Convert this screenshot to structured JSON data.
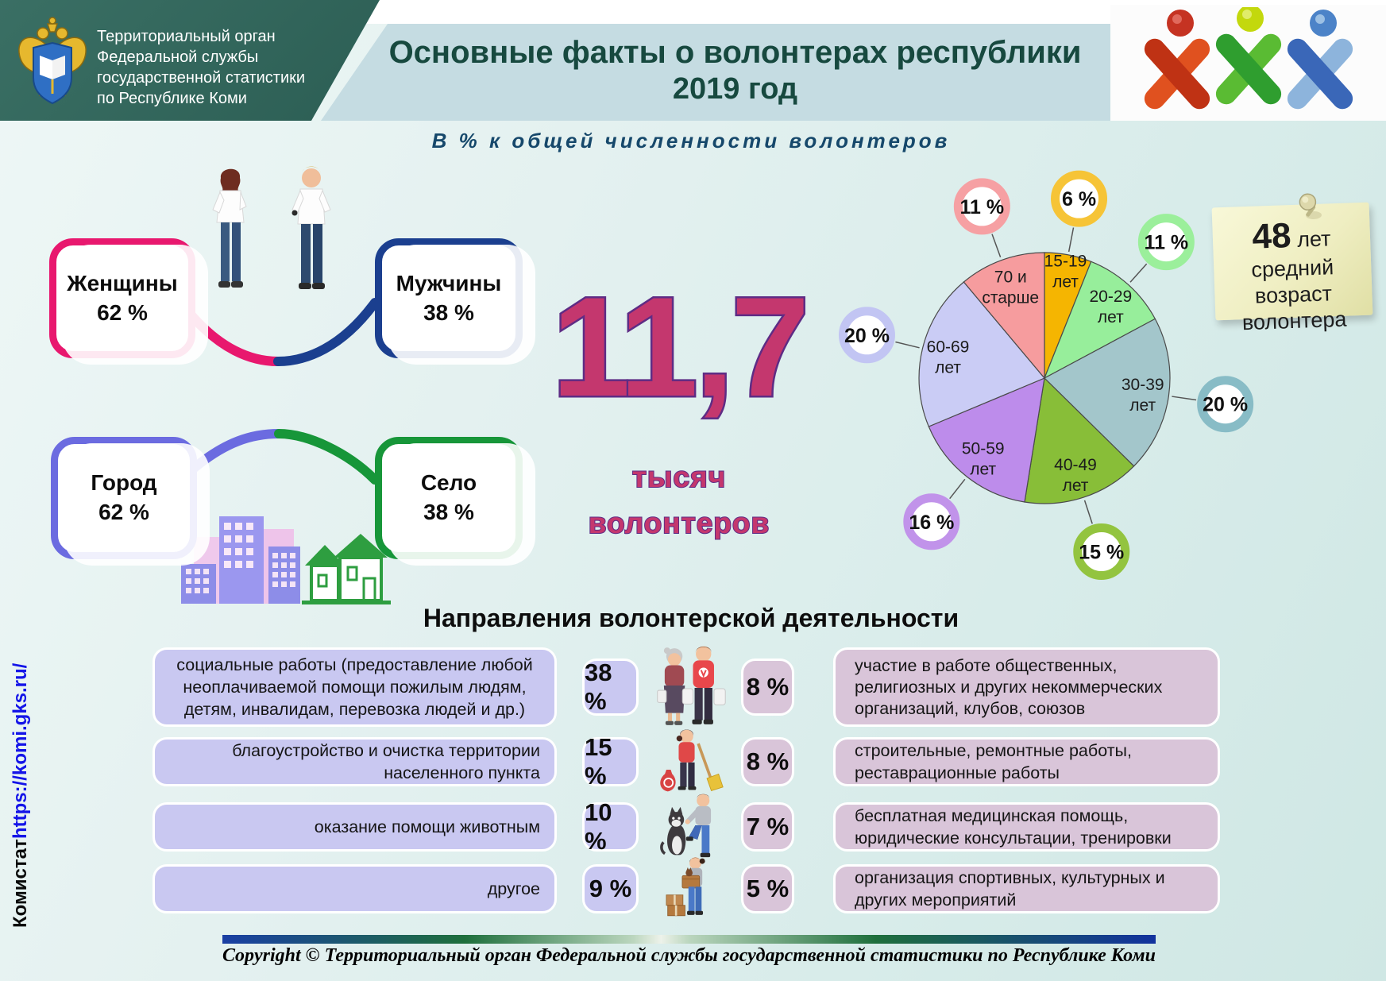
{
  "header": {
    "org_lines": [
      "Территориальный орган",
      "Федеральной службы",
      "государственной статистики",
      "по Республике Коми"
    ],
    "title_line1": "Основные факты о волонтерах республики",
    "title_line2": "2019 год"
  },
  "subtitle": "В % к общей численности волонтеров",
  "stats": {
    "women": {
      "label": "Женщины",
      "value": "62 %"
    },
    "men": {
      "label": "Мужчины",
      "value": "38 %"
    },
    "city": {
      "label": "Город",
      "value": "62 %"
    },
    "village": {
      "label": "Село",
      "value": "38 %"
    },
    "total": {
      "number": "11,7",
      "unit_line1": "тысяч",
      "unit_line2": "волонтеров"
    }
  },
  "average_age_note": {
    "number": "48",
    "suffix": " лет",
    "line2": "средний возраст",
    "line3": "волонтера"
  },
  "chart_data": {
    "type": "pie",
    "title": "В % к общей численности волонтеров",
    "unit": "percent",
    "legend_position": "badges-around",
    "slices": [
      {
        "label": "15-19 лет",
        "value": 6,
        "badge": "6 %",
        "color": "#F5B501",
        "ring": "#F6C437"
      },
      {
        "label": "20-29 лет",
        "value": 11,
        "badge": "11 %",
        "color": "#97EE9B",
        "ring": "#9BEF9B"
      },
      {
        "label": "30-39 лет",
        "value": 20,
        "badge": "20 %",
        "color": "#A3C6CB",
        "ring": "#88BCC6"
      },
      {
        "label": "40-49 лет",
        "value": 15,
        "badge": "15 %",
        "color": "#88BE38",
        "ring": "#93C43F"
      },
      {
        "label": "50-59 лет",
        "value": 16,
        "badge": "16 %",
        "color": "#BD8CEB",
        "ring": "#C193EA"
      },
      {
        "label": "60-69 лет",
        "value": 20,
        "badge": "20 %",
        "color": "#CACCF5",
        "ring": "#C2C5F3"
      },
      {
        "label": "70 и старше",
        "value": 11,
        "badge": "11 %",
        "color": "#F69C9E",
        "ring": "#F6A0A3"
      }
    ]
  },
  "activities": {
    "heading": "Направления волонтерской деятельности",
    "left": [
      {
        "text": "социальные работы (предоставление любой неоплачиваемой помощи пожилым людям, детям, инвалидам, перевозка людей и др.)",
        "value": "38 %"
      },
      {
        "text": "благоустройство и очистка территории населенного пункта",
        "value": "15 %"
      },
      {
        "text": "оказание помощи животным",
        "value": "10 %"
      },
      {
        "text": "другое",
        "value": "9 %"
      }
    ],
    "right": [
      {
        "value": "8 %",
        "text": "участие в работе общественных, религиозных и других некоммерческих организаций, клубов, союзов"
      },
      {
        "value": "8 %",
        "text": "строительные, ремонтные работы, реставрационные работы"
      },
      {
        "value": "7 %",
        "text": "бесплатная медицинская помощь, юридические консультации, тренировки"
      },
      {
        "value": "5 %",
        "text": "организация спортивных, культурных и других мероприятий"
      }
    ]
  },
  "sidebar": {
    "org_short": "Комистат ",
    "url": "https://komi.gks.ru/"
  },
  "footer": {
    "copyright": "Copyright © Территориальный орган Федеральной службы государственной статистики по Республике Коми"
  },
  "colors": {
    "header_teal": "#2C5E54",
    "title_band": "#C5DCE2",
    "title_text": "#17493F",
    "accent_crimson": "#C4376E",
    "outline_purple": "#5E2C85",
    "women_border": "#E8186E",
    "men_border": "#1B3F8F",
    "city_border": "#6B6BE0",
    "village_border": "#179639",
    "left_row_box": "#C9C8F1",
    "right_row_box": "#D9C5D9",
    "sticky_note": "#EFEEC2"
  }
}
